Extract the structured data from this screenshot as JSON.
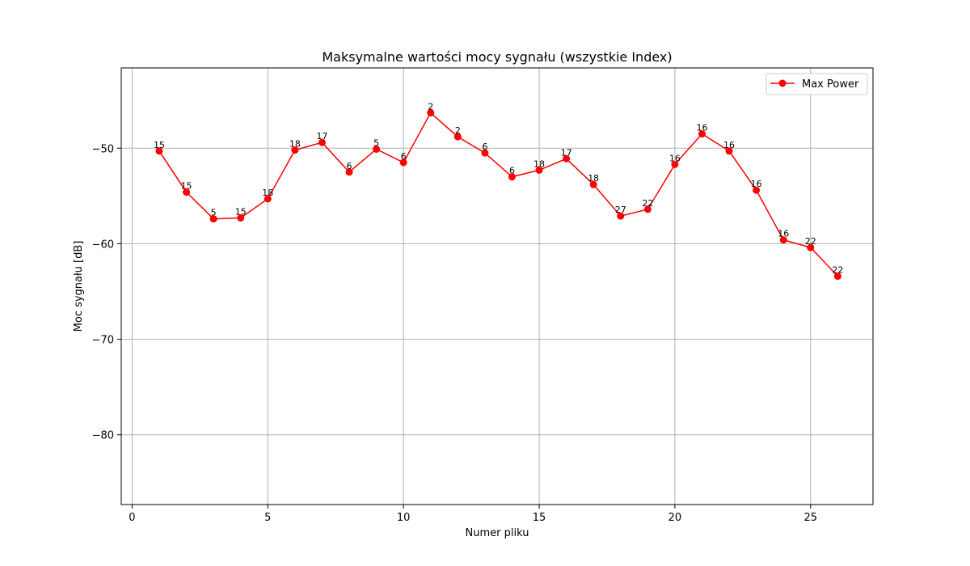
{
  "chart_data": {
    "type": "line",
    "title": "Maksymalne wartości mocy sygnału (wszystkie Index)",
    "xlabel": "Numer pliku",
    "ylabel": "Moc sygnału [dB]",
    "xlim": [
      -0.4,
      27.3
    ],
    "ylim": [
      -87.3,
      -41.6
    ],
    "xticks": [
      0,
      5,
      10,
      15,
      20,
      25
    ],
    "xtick_labels": [
      "0",
      "5",
      "10",
      "15",
      "20",
      "25"
    ],
    "yticks": [
      -80,
      -70,
      -60,
      -50
    ],
    "ytick_labels": [
      "−80",
      "−70",
      "−60",
      "−50"
    ],
    "grid": true,
    "legend": {
      "position": "top-right",
      "entries": [
        "Max Power"
      ]
    },
    "series": [
      {
        "name": "Max Power",
        "color": "#ff0000",
        "marker": "circle",
        "x": [
          1,
          2,
          3,
          4,
          5,
          6,
          7,
          8,
          9,
          10,
          11,
          12,
          13,
          14,
          15,
          16,
          17,
          18,
          19,
          20,
          21,
          22,
          23,
          24,
          25,
          26
        ],
        "y": [
          -50.3,
          -54.6,
          -57.4,
          -57.3,
          -55.3,
          -50.2,
          -49.4,
          -52.5,
          -50.1,
          -51.5,
          -46.3,
          -48.8,
          -50.5,
          -53.0,
          -52.3,
          -51.1,
          -53.8,
          -57.1,
          -56.4,
          -51.7,
          -48.5,
          -50.3,
          -54.4,
          -59.6,
          -60.4,
          -63.4
        ],
        "labels": [
          "15",
          "15",
          "5",
          "15",
          "18",
          "18",
          "17",
          "6",
          "5",
          "6",
          "2",
          "2",
          "6",
          "6",
          "18",
          "17",
          "18",
          "27",
          "22",
          "16",
          "16",
          "16",
          "16",
          "16",
          "22",
          "22"
        ]
      }
    ]
  }
}
